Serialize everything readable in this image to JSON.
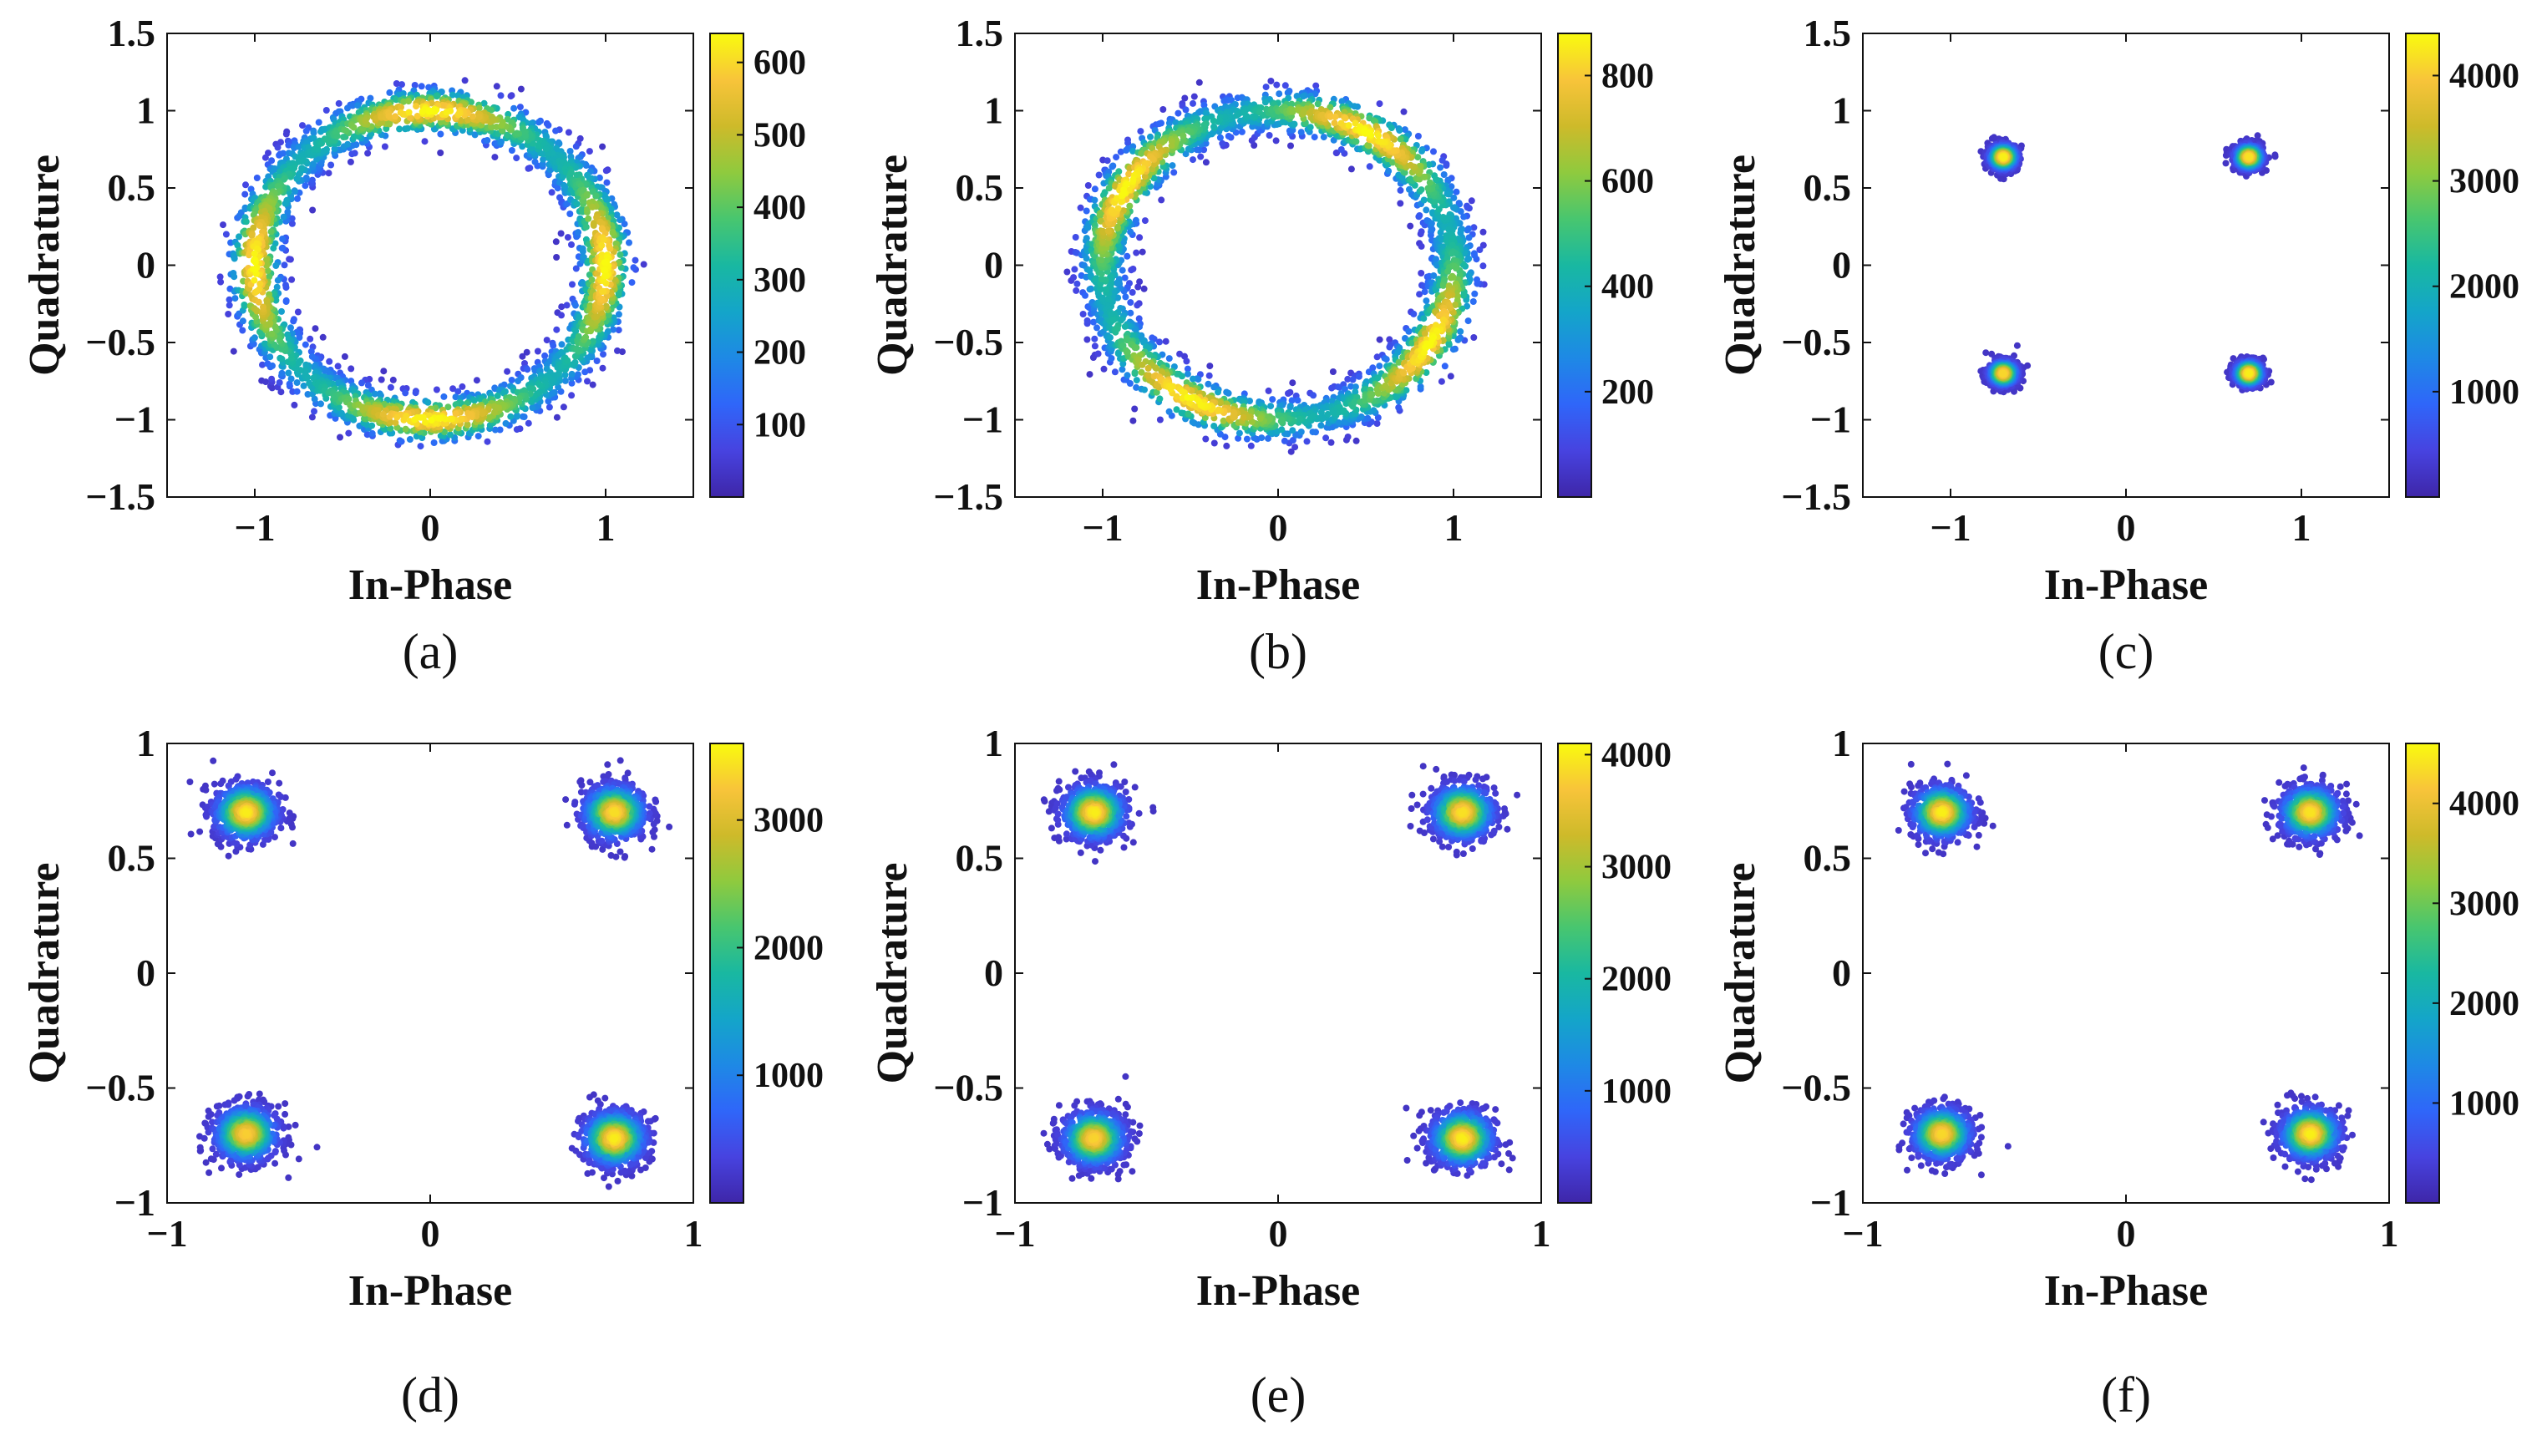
{
  "figure": {
    "description_free": true
  },
  "colors": {
    "axis": "#111111",
    "background": "#ffffff",
    "colormap": [
      "#3e26a8",
      "#4743e0",
      "#2f66f9",
      "#1e89e5",
      "#14a5c9",
      "#19b8a1",
      "#48c66f",
      "#8fca3e",
      "#ceba2a",
      "#f8c43a",
      "#f9fb0e"
    ]
  },
  "chart_data": [
    {
      "id": "a",
      "type": "heatmap",
      "caption": "(a)",
      "title": "",
      "xlabel": "In-Phase",
      "ylabel": "Quadrature",
      "xlim": [
        -1.5,
        1.5
      ],
      "ylim": [
        -1.5,
        1.5
      ],
      "xticks": [
        -1,
        0,
        1
      ],
      "xtick_labels": [
        "−1",
        "0",
        "1"
      ],
      "yticks": [
        1.5,
        1,
        0.5,
        0,
        -0.5,
        -1,
        -1.5
      ],
      "ytick_labels": [
        "1.5",
        "1",
        "0.5",
        "0",
        "−0.5",
        "−1",
        "−1.5"
      ],
      "colorbar": {
        "min": 0,
        "max": 640,
        "ticks": [
          100,
          200,
          300,
          400,
          500,
          600
        ],
        "tick_labels": [
          "100",
          "200",
          "300",
          "400",
          "500",
          "600"
        ]
      },
      "distribution": {
        "shape": "ring",
        "radius": 1.0,
        "thickness": 0.08,
        "peak_angles_deg": [
          0,
          90,
          180,
          270
        ],
        "hotspots": [
          {
            "x": 1.0,
            "y": 0.0,
            "value": 600
          },
          {
            "x": 0.0,
            "y": 1.0,
            "value": 560
          },
          {
            "x": -1.0,
            "y": 0.0,
            "value": 520
          },
          {
            "x": 0.0,
            "y": -1.0,
            "value": 560
          }
        ]
      },
      "grid": false
    },
    {
      "id": "b",
      "type": "heatmap",
      "caption": "(b)",
      "title": "",
      "xlabel": "In-Phase",
      "ylabel": "Quadrature",
      "xlim": [
        -1.5,
        1.5
      ],
      "ylim": [
        -1.5,
        1.5
      ],
      "xticks": [
        -1,
        0,
        1
      ],
      "xtick_labels": [
        "−1",
        "0",
        "1"
      ],
      "yticks": [
        1.5,
        1,
        0.5,
        0,
        -0.5,
        -1,
        -1.5
      ],
      "ytick_labels": [
        "1.5",
        "1",
        "0.5",
        "0",
        "−0.5",
        "−1",
        "−1.5"
      ],
      "colorbar": {
        "min": 0,
        "max": 880,
        "ticks": [
          200,
          400,
          600,
          800
        ],
        "tick_labels": [
          "200",
          "400",
          "600",
          "800"
        ]
      },
      "distribution": {
        "shape": "ring",
        "radius": 1.0,
        "thickness": 0.08,
        "peak_angles_deg": [
          60,
          150,
          240,
          330
        ],
        "hotspots": [
          {
            "x": 0.4,
            "y": 0.9,
            "value": 800
          },
          {
            "x": -0.9,
            "y": 0.4,
            "value": 700
          },
          {
            "x": -0.4,
            "y": -0.9,
            "value": 760
          },
          {
            "x": 0.9,
            "y": -0.4,
            "value": 720
          }
        ]
      },
      "grid": false
    },
    {
      "id": "c",
      "type": "heatmap",
      "caption": "(c)",
      "title": "",
      "xlabel": "In-Phase",
      "ylabel": "Quadrature",
      "xlim": [
        -1.5,
        1.5
      ],
      "ylim": [
        -1.5,
        1.5
      ],
      "xticks": [
        -1,
        0,
        1
      ],
      "xtick_labels": [
        "−1",
        "0",
        "1"
      ],
      "yticks": [
        1.5,
        1,
        0.5,
        0,
        -0.5,
        -1,
        -1.5
      ],
      "ytick_labels": [
        "1.5",
        "1",
        "0.5",
        "0",
        "−0.5",
        "−1",
        "−1.5"
      ],
      "colorbar": {
        "min": 0,
        "max": 4400,
        "ticks": [
          1000,
          2000,
          3000,
          4000
        ],
        "tick_labels": [
          "1000",
          "2000",
          "3000",
          "4000"
        ]
      },
      "distribution": {
        "shape": "clusters",
        "spread": 0.1,
        "centers": [
          {
            "x": -0.7,
            "y": 0.7,
            "value": 4300
          },
          {
            "x": 0.7,
            "y": 0.7,
            "value": 4200
          },
          {
            "x": -0.7,
            "y": -0.7,
            "value": 4100
          },
          {
            "x": 0.7,
            "y": -0.7,
            "value": 4300
          }
        ]
      },
      "grid": false
    },
    {
      "id": "d",
      "type": "heatmap",
      "caption": "(d)",
      "title": "",
      "xlabel": "In-Phase",
      "ylabel": "Quadrature",
      "xlim": [
        -1,
        1
      ],
      "ylim": [
        -1,
        1
      ],
      "xticks": [
        -1,
        0,
        1
      ],
      "xtick_labels": [
        "−1",
        "0",
        "1"
      ],
      "yticks": [
        1,
        0.5,
        0,
        -0.5,
        -1
      ],
      "ytick_labels": [
        "1",
        "0.5",
        "0",
        "−0.5",
        "−1"
      ],
      "colorbar": {
        "min": 0,
        "max": 3600,
        "ticks": [
          1000,
          2000,
          3000
        ],
        "tick_labels": [
          "1000",
          "2000",
          "3000"
        ]
      },
      "distribution": {
        "shape": "clusters",
        "spread": 0.15,
        "centers": [
          {
            "x": -0.7,
            "y": 0.7,
            "value": 3500
          },
          {
            "x": 0.7,
            "y": 0.7,
            "value": 3400
          },
          {
            "x": -0.7,
            "y": -0.7,
            "value": 3300
          },
          {
            "x": 0.7,
            "y": -0.72,
            "value": 3500
          }
        ]
      },
      "grid": false
    },
    {
      "id": "e",
      "type": "heatmap",
      "caption": "(e)",
      "title": "",
      "xlabel": "In-Phase",
      "ylabel": "Quadrature",
      "xlim": [
        -1,
        1
      ],
      "ylim": [
        -1,
        1
      ],
      "xticks": [
        -1,
        0,
        1
      ],
      "xtick_labels": [
        "−1",
        "0",
        "1"
      ],
      "yticks": [
        1,
        0.5,
        0,
        -0.5,
        -1
      ],
      "ytick_labels": [
        "1",
        "0.5",
        "0",
        "−0.5",
        "−1"
      ],
      "colorbar": {
        "min": 0,
        "max": 4100,
        "ticks": [
          1000,
          2000,
          3000,
          4000
        ],
        "tick_labels": [
          "1000",
          "2000",
          "3000",
          "4000"
        ]
      },
      "distribution": {
        "shape": "clusters",
        "spread": 0.15,
        "centers": [
          {
            "x": -0.7,
            "y": 0.7,
            "value": 4000
          },
          {
            "x": 0.7,
            "y": 0.7,
            "value": 3900
          },
          {
            "x": -0.7,
            "y": -0.72,
            "value": 3800
          },
          {
            "x": 0.7,
            "y": -0.72,
            "value": 4000
          }
        ]
      },
      "grid": false
    },
    {
      "id": "f",
      "type": "heatmap",
      "caption": "(f)",
      "title": "",
      "xlabel": "In-Phase",
      "ylabel": "Quadrature",
      "xlim": [
        -1,
        1
      ],
      "ylim": [
        -1,
        1
      ],
      "xticks": [
        -1,
        0,
        1
      ],
      "xtick_labels": [
        "−1",
        "0",
        "1"
      ],
      "yticks": [
        1,
        0.5,
        0,
        -0.5,
        -1
      ],
      "ytick_labels": [
        "1",
        "0.5",
        "0",
        "−0.5",
        "−1"
      ],
      "colorbar": {
        "min": 0,
        "max": 4600,
        "ticks": [
          1000,
          2000,
          3000,
          4000
        ],
        "tick_labels": [
          "1000",
          "2000",
          "3000",
          "4000"
        ]
      },
      "distribution": {
        "shape": "clusters",
        "spread": 0.14,
        "centers": [
          {
            "x": -0.7,
            "y": 0.7,
            "value": 4500
          },
          {
            "x": 0.7,
            "y": 0.7,
            "value": 4400
          },
          {
            "x": -0.7,
            "y": -0.7,
            "value": 4300
          },
          {
            "x": 0.7,
            "y": -0.7,
            "value": 4500
          }
        ]
      },
      "grid": false
    }
  ]
}
